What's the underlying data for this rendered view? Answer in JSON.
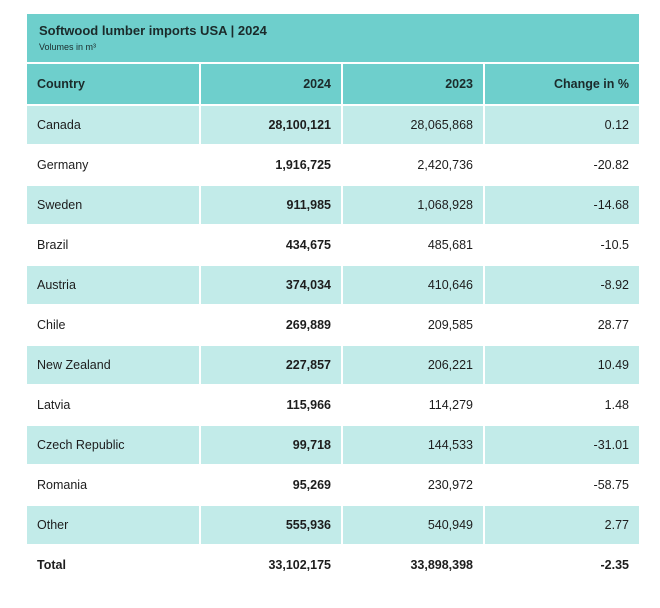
{
  "header": {
    "title": "Softwood lumber imports USA | 2024",
    "subtitle": "Volumes in m³"
  },
  "chart_data": {
    "type": "table",
    "columns": [
      "Country",
      "2024",
      "2023",
      "Change in %"
    ],
    "rows": [
      [
        "Canada",
        "28,100,121",
        "28,065,868",
        "0.12"
      ],
      [
        "Germany",
        "1,916,725",
        "2,420,736",
        "-20.82"
      ],
      [
        "Sweden",
        "911,985",
        "1,068,928",
        "-14.68"
      ],
      [
        "Brazil",
        "434,675",
        "485,681",
        "-10.5"
      ],
      [
        "Austria",
        "374,034",
        "410,646",
        "-8.92"
      ],
      [
        "Chile",
        "269,889",
        "209,585",
        "28.77"
      ],
      [
        "New Zealand",
        "227,857",
        "206,221",
        "10.49"
      ],
      [
        "Latvia",
        "115,966",
        "114,279",
        "1.48"
      ],
      [
        "Czech Republic",
        "99,718",
        "144,533",
        "-31.01"
      ],
      [
        "Romania",
        "95,269",
        "230,972",
        "-58.75"
      ],
      [
        "Other",
        "555,936",
        "540,949",
        "2.77"
      ],
      [
        "Total",
        "33,102,175",
        "33,898,398",
        "-2.35"
      ]
    ]
  },
  "colors": {
    "header_bg": "#6ecfcc",
    "row_shaded": "#c2ebe9",
    "row_plain": "#ffffff"
  }
}
